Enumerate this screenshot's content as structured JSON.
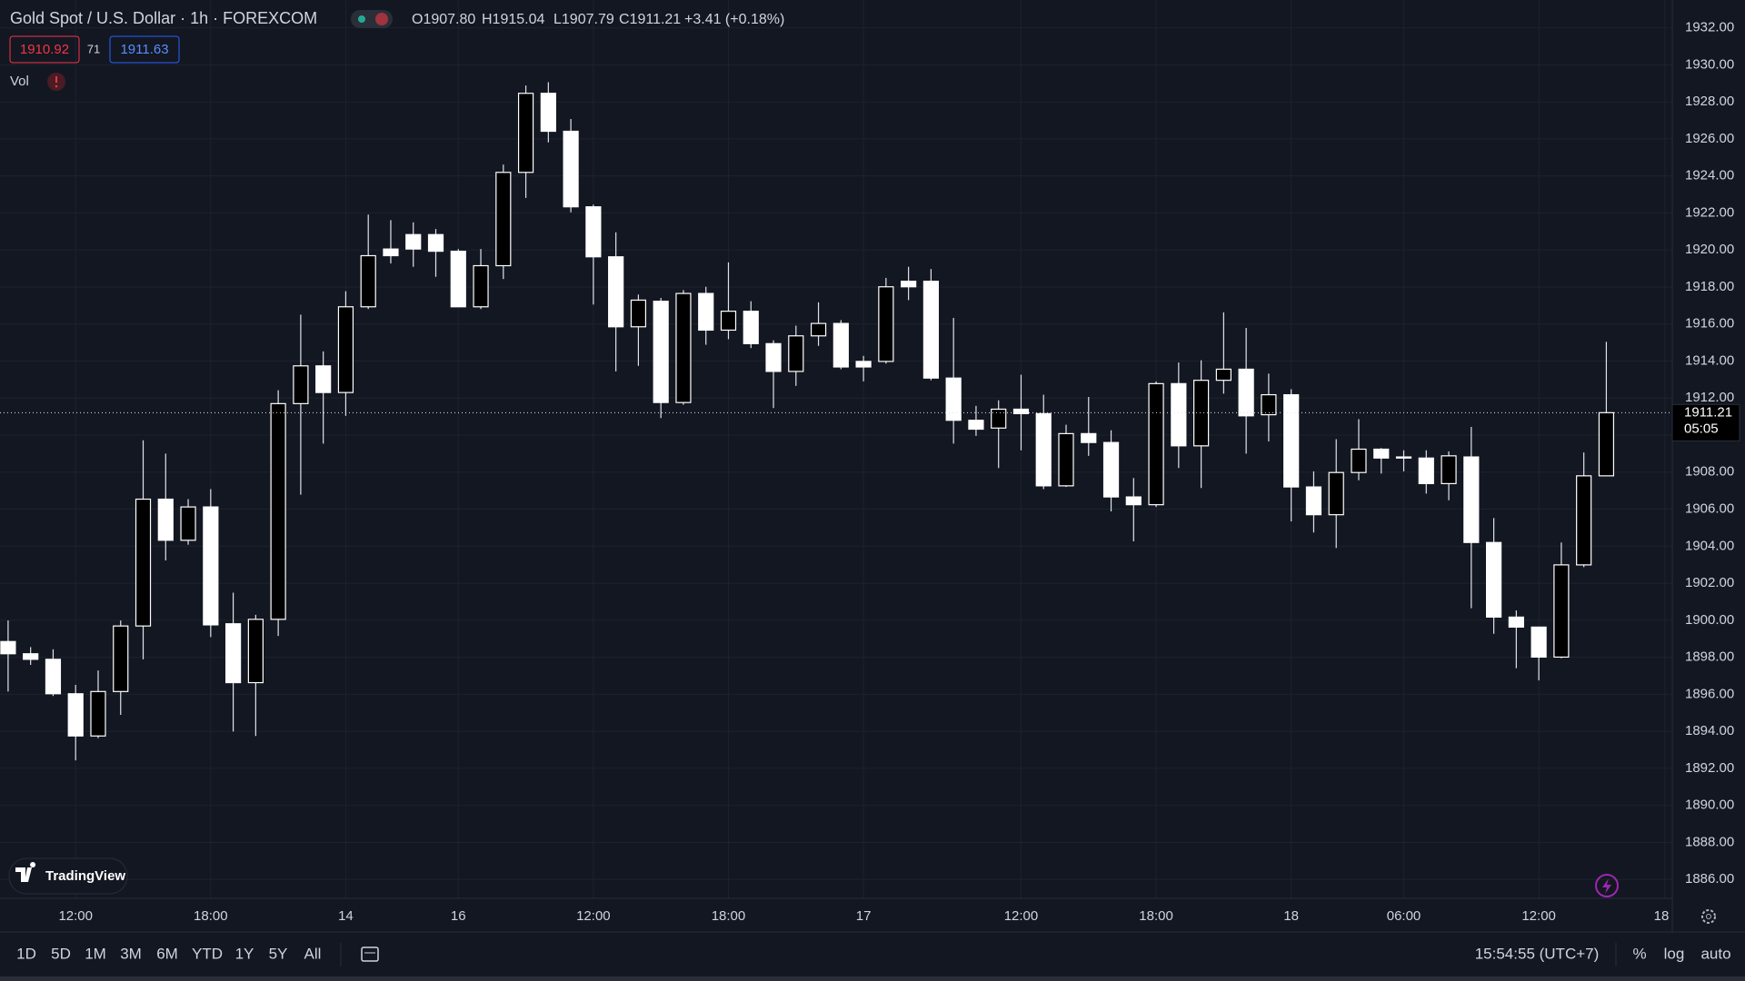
{
  "header": {
    "title": "Gold Spot / U.S. Dollar · 1h · FOREXCOM",
    "ohlc": [
      "O1907.80",
      "H1915.04",
      "L1907.79",
      "C1911.21"
    ],
    "change": "+3.41 (+0.18%)"
  },
  "quote": {
    "bid": "1910.92",
    "spread": "71",
    "ask": "1911.63"
  },
  "indicator": "Vol",
  "logo": "TradingView",
  "countdown": "05:05",
  "toolbar": {
    "ranges": [
      "1D",
      "5D",
      "1M",
      "3M",
      "6M",
      "YTD",
      "1Y",
      "5Y",
      "All"
    ],
    "clock": "15:54:55 (UTC+7)",
    "options": [
      "%",
      "log",
      "auto"
    ]
  },
  "chart_data": {
    "type": "candlestick",
    "open": [
      1898.85,
      1898.19,
      1897.89,
      1896.03,
      1893.75,
      1896.15,
      1899.69,
      1906.54,
      1904.32,
      1906.12,
      1899.81,
      1896.63,
      1900.05,
      1911.7,
      1913.74,
      1912.3,
      1916.93,
      1920.05,
      1920.83,
      1920.83,
      1919.93,
      1916.93,
      1919.15,
      1924.19,
      1928.46,
      1926.41,
      1922.33,
      1919.63,
      1915.85,
      1917.23,
      1911.76,
      1917.65,
      1915.67,
      1916.69,
      1914.94,
      1913.44,
      1915.36,
      1916.03,
      1913.98,
      1913.98,
      1918.31,
      1918.31,
      1913.08,
      1910.8,
      1910.38,
      1911.4,
      1911.16,
      1907.26,
      1910.08,
      1909.6,
      1906.66,
      1906.24,
      1912.78,
      1909.42,
      1912.96,
      1913.56,
      1911.1,
      1912.18,
      1907.2,
      1905.7,
      1907.98,
      1909.24,
      1908.82,
      1908.76,
      1907.38,
      1908.82,
      1904.2,
      1900.17,
      1899.63,
      1898.01,
      1902.99,
      1907.8
    ],
    "high": [
      1899.99,
      1898.55,
      1898.43,
      1896.51,
      1897.29,
      1899.99,
      1909.72,
      1909.0,
      1906.54,
      1907.08,
      1901.49,
      1900.29,
      1912.42,
      1916.51,
      1914.52,
      1917.77,
      1921.91,
      1921.61,
      1921.49,
      1921.13,
      1920.05,
      1920.05,
      1924.61,
      1928.88,
      1929.06,
      1927.07,
      1922.45,
      1920.95,
      1917.59,
      1917.41,
      1917.83,
      1918.01,
      1919.33,
      1917.23,
      1915.12,
      1915.91,
      1917.17,
      1916.21,
      1914.28,
      1918.49,
      1919.09,
      1918.97,
      1916.33,
      1911.58,
      1911.88,
      1913.26,
      1912.18,
      1910.56,
      1912.06,
      1910.26,
      1907.68,
      1912.9,
      1913.92,
      1914.04,
      1916.63,
      1915.79,
      1913.32,
      1912.48,
      1908.04,
      1909.78,
      1910.86,
      1909.3,
      1909.18,
      1909.18,
      1909.12,
      1910.44,
      1905.52,
      1900.53,
      1899.63,
      1904.2,
      1909.06,
      1915.04
    ],
    "low": [
      1896.15,
      1897.59,
      1895.91,
      1892.43,
      1893.63,
      1894.89,
      1897.89,
      1903.23,
      1904.08,
      1899.09,
      1893.99,
      1893.75,
      1899.15,
      1906.78,
      1909.54,
      1911.04,
      1916.81,
      1919.27,
      1919.09,
      1918.55,
      1916.93,
      1916.81,
      1918.43,
      1922.81,
      1925.81,
      1922.03,
      1917.05,
      1913.44,
      1913.74,
      1910.92,
      1911.64,
      1914.88,
      1915.18,
      1914.7,
      1911.46,
      1912.66,
      1914.82,
      1913.56,
      1912.9,
      1913.86,
      1917.29,
      1912.96,
      1909.54,
      1909.96,
      1908.22,
      1909.18,
      1907.08,
      1907.2,
      1908.88,
      1905.88,
      1904.26,
      1906.12,
      1908.22,
      1907.14,
      1912.24,
      1909.0,
      1909.66,
      1905.34,
      1904.74,
      1903.9,
      1907.56,
      1907.92,
      1908.04,
      1906.84,
      1906.48,
      1900.65,
      1899.27,
      1897.41,
      1896.75,
      1897.95,
      1902.87,
      1907.79
    ],
    "close": [
      1898.19,
      1897.89,
      1896.03,
      1893.75,
      1896.15,
      1899.69,
      1906.54,
      1904.32,
      1906.12,
      1899.75,
      1896.63,
      1900.05,
      1911.7,
      1913.74,
      1912.3,
      1916.93,
      1919.69,
      1919.69,
      1920.05,
      1919.93,
      1916.93,
      1919.15,
      1924.19,
      1928.46,
      1926.41,
      1922.33,
      1919.63,
      1915.85,
      1917.29,
      1911.76,
      1917.65,
      1915.67,
      1916.69,
      1914.94,
      1913.44,
      1915.36,
      1916.03,
      1913.68,
      1913.68,
      1918.01,
      1918.01,
      1913.08,
      1910.8,
      1910.32,
      1911.4,
      1911.16,
      1907.26,
      1910.08,
      1909.6,
      1906.66,
      1906.24,
      1912.78,
      1909.42,
      1912.96,
      1913.56,
      1911.04,
      1912.18,
      1907.2,
      1905.7,
      1907.98,
      1909.24,
      1908.76,
      1908.76,
      1907.38,
      1908.88,
      1904.2,
      1900.17,
      1899.63,
      1898.01,
      1902.99,
      1907.8,
      1911.21
    ],
    "up_color": "#000000",
    "down_color": "#ffffff",
    "border_color": "#ffffff",
    "wick_color": "#e0e3eb",
    "xlim": [
      -0.36,
      73.93
    ],
    "xticks": [
      {
        "value": 3,
        "label": "12:00"
      },
      {
        "value": 9,
        "label": "18:00"
      },
      {
        "value": 15,
        "label": "14"
      },
      {
        "value": 20,
        "label": "16"
      },
      {
        "value": 26,
        "label": "12:00"
      },
      {
        "value": 32,
        "label": "18:00"
      },
      {
        "value": 38,
        "label": "17"
      },
      {
        "value": 45,
        "label": "12:00"
      },
      {
        "value": 51,
        "label": "18:00"
      },
      {
        "value": 57,
        "label": "18"
      },
      {
        "value": 62,
        "label": "06:00"
      },
      {
        "value": 68,
        "label": "12:00"
      },
      {
        "value": 73.6,
        "label": "18"
      }
    ],
    "ylim": [
      1884.98,
      1933.5
    ],
    "yticks": [
      {
        "value": 1886,
        "label": "1886.00"
      },
      {
        "value": 1888,
        "label": "1888.00"
      },
      {
        "value": 1890,
        "label": "1890.00"
      },
      {
        "value": 1892,
        "label": "1892.00"
      },
      {
        "value": 1894,
        "label": "1894.00"
      },
      {
        "value": 1896,
        "label": "1896.00"
      },
      {
        "value": 1898,
        "label": "1898.00"
      },
      {
        "value": 1900,
        "label": "1900.00"
      },
      {
        "value": 1902,
        "label": "1902.00"
      },
      {
        "value": 1904,
        "label": "1904.00"
      },
      {
        "value": 1906,
        "label": "1906.00"
      },
      {
        "value": 1908,
        "label": "1908.00"
      },
      {
        "value": 1910,
        "label": "1910.00"
      },
      {
        "value": 1912,
        "label": "1912.00"
      },
      {
        "value": 1914,
        "label": "1914.00"
      },
      {
        "value": 1916,
        "label": "1916.00"
      },
      {
        "value": 1918,
        "label": "1918.00"
      },
      {
        "value": 1920,
        "label": "1920.00"
      },
      {
        "value": 1922,
        "label": "1922.00"
      },
      {
        "value": 1924,
        "label": "1924.00"
      },
      {
        "value": 1926,
        "label": "1926.00"
      },
      {
        "value": 1928,
        "label": "1928.00"
      },
      {
        "value": 1930,
        "label": "1930.00"
      },
      {
        "value": 1932,
        "label": "1932.00"
      }
    ],
    "grid": true
  }
}
